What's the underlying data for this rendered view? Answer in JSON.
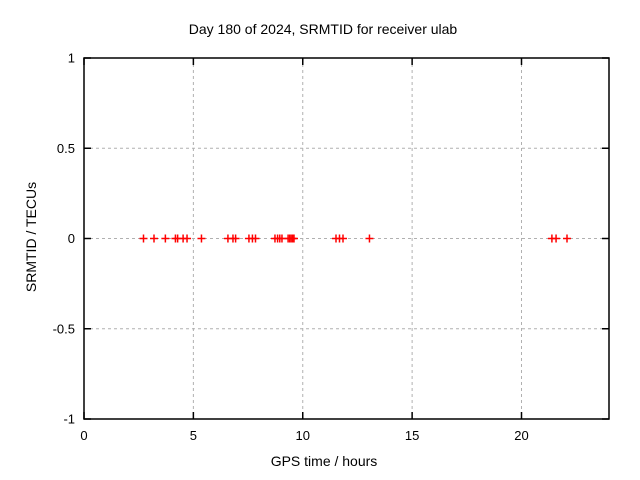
{
  "chart_data": {
    "type": "scatter",
    "title": "Day 180 of 2024, SRMTID for receiver ulab",
    "xlabel": "GPS time / hours",
    "ylabel": "SRMTID / TECUs",
    "xlim": [
      0,
      24
    ],
    "ylim": [
      -1,
      1
    ],
    "xticks": [
      0,
      5,
      10,
      15,
      20
    ],
    "xtick_labels": [
      "0",
      "5",
      "10",
      "15",
      "20"
    ],
    "yticks": [
      1,
      0.5,
      0,
      -0.5,
      -1
    ],
    "ytick_labels": [
      "1",
      "0.5",
      "0",
      "-0.5",
      "-1"
    ],
    "grid": true,
    "legend_position": "none",
    "background_color": "#ffffff",
    "grid_color": "#b0b0b0",
    "border_color": "#000000",
    "series": [
      {
        "name": "SRMTID",
        "marker": "plus",
        "color": "#ff0000",
        "x": [
          2.72,
          3.2,
          3.72,
          4.18,
          4.28,
          4.53,
          4.71,
          5.37,
          6.58,
          6.81,
          6.93,
          7.54,
          7.7,
          7.84,
          8.73,
          8.85,
          8.95,
          9.05,
          9.33,
          9.4,
          9.47,
          9.54,
          9.6,
          11.52,
          11.68,
          11.84,
          13.05,
          21.39,
          21.58,
          22.08
        ],
        "y": [
          0,
          0,
          0,
          0,
          0,
          0,
          0,
          0,
          0,
          0,
          0,
          0,
          0,
          0,
          0,
          0,
          0,
          0,
          0,
          0,
          0,
          0,
          0,
          0,
          0,
          0,
          0,
          0,
          0,
          0
        ]
      }
    ]
  }
}
